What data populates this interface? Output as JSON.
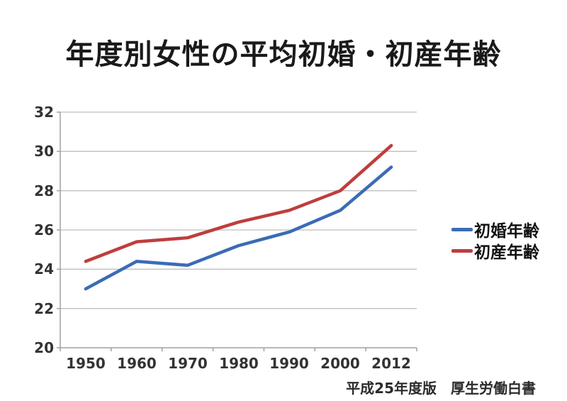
{
  "header": {
    "title": "年度別女性の平均初婚・初産年齢"
  },
  "chart_data": {
    "type": "line",
    "title": "年度別女性の平均初婚・初産年齢",
    "categories": [
      "1950",
      "1960",
      "1970",
      "1980",
      "1990",
      "2000",
      "2012"
    ],
    "series": [
      {
        "name": "初婚年齢",
        "color": "#3A6CB5",
        "values": [
          23.0,
          24.4,
          24.2,
          25.2,
          25.9,
          27.0,
          29.2
        ]
      },
      {
        "name": "初産年齢",
        "color": "#BE3E3C",
        "values": [
          24.4,
          25.4,
          25.6,
          26.4,
          27.0,
          28.0,
          30.3
        ]
      }
    ],
    "xlabel": "",
    "ylabel": "",
    "ylim": [
      20,
      32
    ],
    "ytick_step": 2,
    "y_tick_labels_top_down": [
      "32",
      "30",
      "28",
      "26",
      "24",
      "22",
      "20"
    ],
    "grid": true,
    "legend_position": "right",
    "gridline_color": "#BFBFBF",
    "axis_color": "#A0A0A0",
    "line_width": 4.5
  },
  "footer": {
    "source": "平成25年度版　厚生労働白書"
  }
}
